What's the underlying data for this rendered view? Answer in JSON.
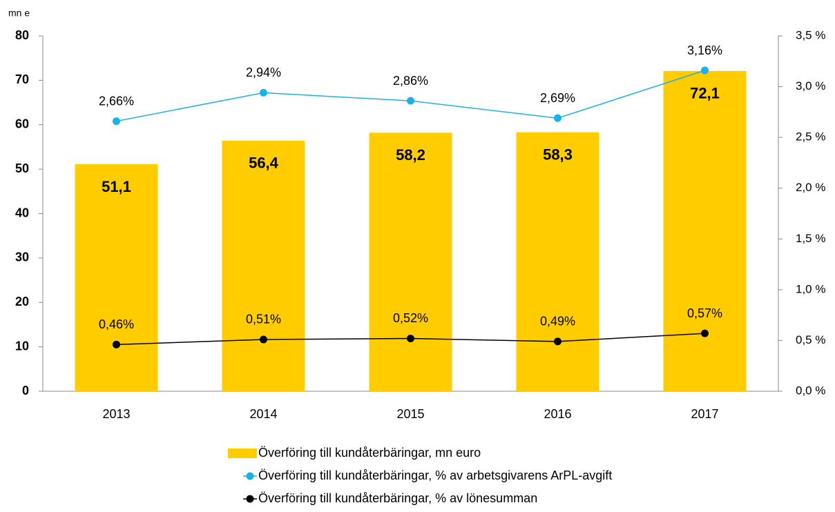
{
  "chart_data": {
    "type": "bar",
    "y_label": "mn e",
    "categories": [
      "2013",
      "2014",
      "2015",
      "2016",
      "2017"
    ],
    "series": [
      {
        "name": "Överföring till kundåterbäringar, mn euro",
        "type": "bar",
        "color": "#ffcc00",
        "values": [
          51.1,
          56.4,
          58.2,
          58.3,
          72.1
        ],
        "value_labels": [
          "51,1",
          "56,4",
          "58,2",
          "58,3",
          "72,1"
        ]
      },
      {
        "name": "Överföring till kundåterbäringar, % av arbetsgivarens ArPL-avgift",
        "type": "line",
        "axis": "y2",
        "color": "#1ab0e8",
        "values": [
          2.66,
          2.94,
          2.86,
          2.69,
          3.16
        ],
        "value_labels": [
          "2,66%",
          "2,94%",
          "2,86%",
          "2,69%",
          "3,16%"
        ]
      },
      {
        "name": "Överföring till kundåterbäringar, % av lönesumman",
        "type": "line",
        "axis": "y2",
        "color": "#000000",
        "values": [
          0.46,
          0.51,
          0.52,
          0.49,
          0.57
        ],
        "value_labels": [
          "0,46%",
          "0,51%",
          "0,52%",
          "0,49%",
          "0,57%"
        ]
      }
    ],
    "ylim": [
      0,
      80
    ],
    "yticks": [
      0,
      10,
      20,
      30,
      40,
      50,
      60,
      70,
      80
    ],
    "y2lim": [
      0,
      3.5
    ],
    "y2ticks": [
      {
        "value": 0,
        "label": "0,0 %"
      },
      {
        "value": 0.5,
        "label": "0,5 %"
      },
      {
        "value": 1,
        "label": "1,0 %"
      },
      {
        "value": 1.5,
        "label": "1,5 %"
      },
      {
        "value": 2,
        "label": "2,0 %"
      },
      {
        "value": 2.5,
        "label": "2,5 %"
      },
      {
        "value": 3,
        "label": "3,0 %"
      },
      {
        "value": 3.5,
        "label": "3,5 %"
      }
    ],
    "grid": false,
    "legend": "bottom"
  }
}
